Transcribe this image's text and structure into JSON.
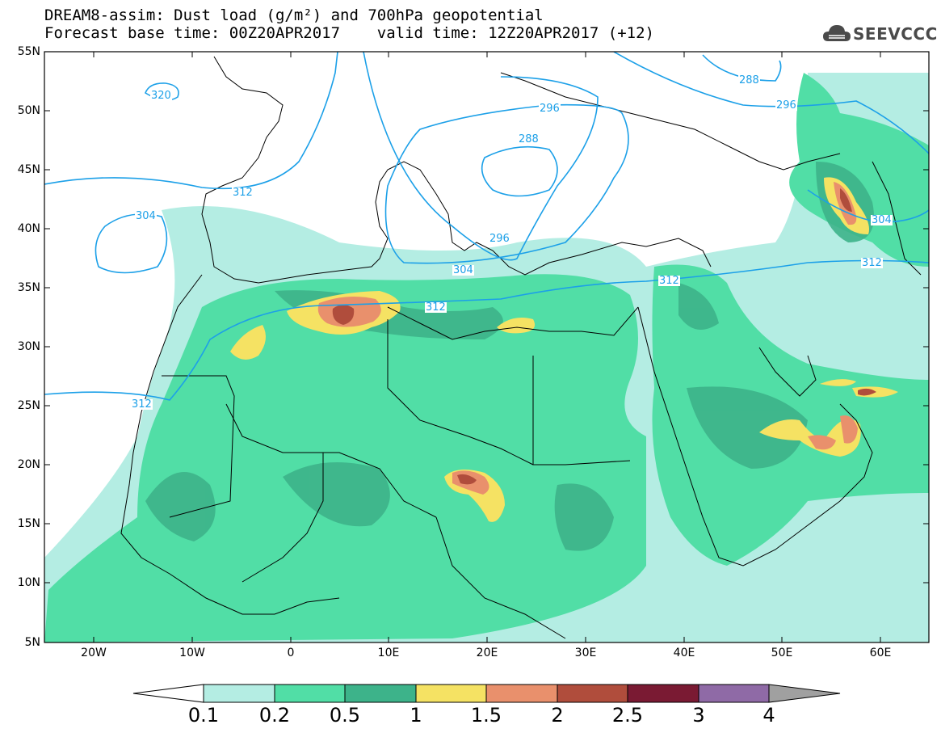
{
  "header": {
    "title_line1": "DREAM8-assim: Dust load (g/m²) and 700hPa geopotential",
    "title_line2": "Forecast base time: 00Z20APR2017    valid time: 12Z20APR2017 (+12)",
    "logo_text": "SEEVCCC"
  },
  "axes": {
    "lat_labels": [
      "55N",
      "50N",
      "45N",
      "40N",
      "35N",
      "30N",
      "25N",
      "20N",
      "15N",
      "10N",
      "5N"
    ],
    "lon_labels": [
      "20W",
      "10W",
      "0",
      "10E",
      "20E",
      "30E",
      "40E",
      "50E",
      "60E"
    ]
  },
  "contour_labels": [
    "320",
    "304",
    "312",
    "312",
    "304",
    "296",
    "288",
    "296",
    "312",
    "288",
    "296",
    "304",
    "312",
    "312"
  ],
  "colorbar": {
    "labels": [
      "0.1",
      "0.2",
      "0.5",
      "1",
      "1.5",
      "2",
      "2.5",
      "3",
      "4"
    ],
    "colors": [
      "#ffffff",
      "#b4ede3",
      "#51dea6",
      "#3db38a",
      "#f5e263",
      "#e9906c",
      "#b04d3c",
      "#7a1a33",
      "#8f6aa6",
      "#a0a0a0"
    ]
  },
  "colors": {
    "contour": "#1ca0e8",
    "coastline": "#000000",
    "dust_01": "#b4ede3",
    "dust_02": "#51dea6",
    "dust_05": "#3db38a",
    "dust_1": "#f5e263",
    "dust_15": "#e9906c",
    "dust_2": "#b04d3c"
  }
}
